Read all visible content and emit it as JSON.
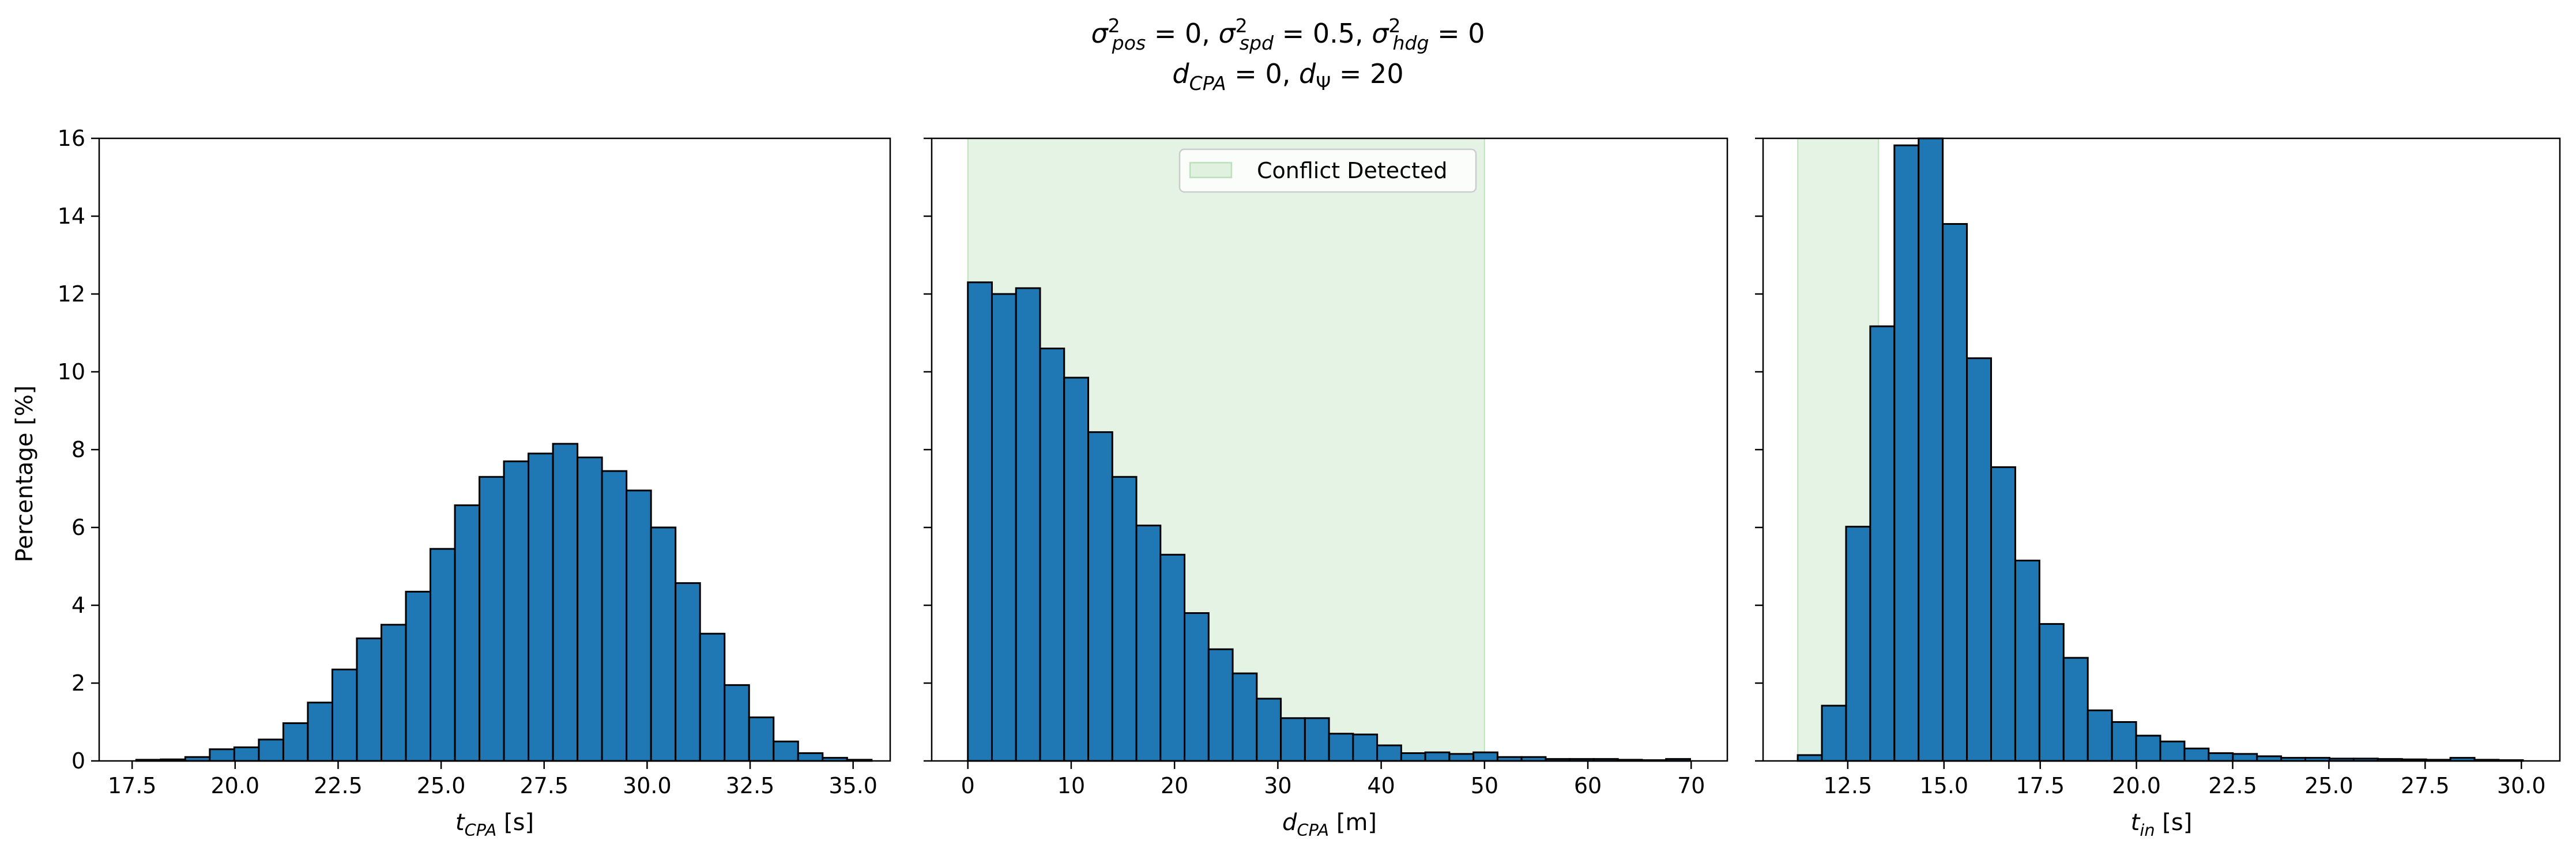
{
  "title": {
    "line1": {
      "s_pos": "pos",
      "s_pos_val": " = 0, ",
      "s_spd": "spd",
      "s_spd_val": " = 0.5, ",
      "s_hdg": "hdg",
      "s_hdg_val": " = 0"
    },
    "line2": {
      "d_cpa_sub": "CPA",
      "d_cpa_val": " = 0, ",
      "d_psi_sub": "Ψ",
      "d_psi_val": " = 20"
    }
  },
  "ylabel": "Percentage [%]",
  "legend": {
    "label": "Conflict Detected",
    "color": "#2ca02c"
  },
  "bar_color": "#1f77b4",
  "chart_data": [
    {
      "type": "bar",
      "xlabel_sub": "CPA",
      "xlabel_unit": " [s]",
      "xlim": [
        16.7,
        35.9
      ],
      "ylim": [
        0,
        16
      ],
      "xticks": [
        "17.5",
        "20.0",
        "22.5",
        "25.0",
        "27.5",
        "30.0",
        "32.5",
        "35.0"
      ],
      "xtick_values": [
        17.5,
        20.0,
        22.5,
        25.0,
        27.5,
        30.0,
        32.5,
        35.0
      ],
      "yticks": [
        "0",
        "2",
        "4",
        "6",
        "8",
        "10",
        "12",
        "14",
        "16"
      ],
      "ytick_values": [
        0,
        2,
        4,
        6,
        8,
        10,
        12,
        14,
        16
      ],
      "bin_start": 17.6,
      "bin_width": 0.595,
      "values": [
        0.03,
        0.04,
        0.1,
        0.3,
        0.35,
        0.55,
        0.97,
        1.5,
        2.35,
        3.15,
        3.5,
        4.35,
        5.45,
        6.57,
        7.3,
        7.7,
        7.9,
        8.15,
        7.8,
        7.45,
        6.95,
        6.0,
        4.57,
        3.27,
        1.95,
        1.12,
        0.5,
        0.2,
        0.08,
        0.03
      ],
      "shade": null
    },
    {
      "type": "bar",
      "xlabel_sub": "CPA",
      "xlabel_unit": " [m]",
      "xlim": [
        -3.5,
        73.5
      ],
      "ylim": [
        0,
        16
      ],
      "xticks": [
        "0",
        "10",
        "20",
        "30",
        "40",
        "50",
        "60",
        "70"
      ],
      "xtick_values": [
        0,
        10,
        20,
        30,
        40,
        50,
        60,
        70
      ],
      "yticks": [
        "0",
        "2",
        "4",
        "6",
        "8",
        "10",
        "12",
        "14",
        "16"
      ],
      "ytick_values": [
        0,
        2,
        4,
        6,
        8,
        10,
        12,
        14,
        16
      ],
      "bin_start": 0,
      "bin_width": 2.33,
      "values": [
        12.3,
        12.0,
        12.15,
        10.6,
        9.85,
        8.45,
        7.3,
        6.05,
        5.3,
        3.8,
        2.87,
        2.25,
        1.6,
        1.1,
        1.1,
        0.7,
        0.68,
        0.4,
        0.2,
        0.22,
        0.18,
        0.22,
        0.1,
        0.1,
        0.05,
        0.05,
        0.05,
        0.03,
        0.02,
        0.05
      ],
      "shade": [
        0,
        50
      ]
    },
    {
      "type": "bar",
      "xlabel_sub": "in",
      "xlabel_unit": " [s]",
      "xlim": [
        10.3,
        31.0
      ],
      "ylim": [
        0,
        16
      ],
      "xticks": [
        "12.5",
        "15.0",
        "17.5",
        "20.0",
        "22.5",
        "25.0",
        "27.5",
        "30.0"
      ],
      "xtick_values": [
        12.5,
        15.0,
        17.5,
        20.0,
        22.5,
        25.0,
        27.5,
        30.0
      ],
      "yticks": [
        "0",
        "2",
        "4",
        "6",
        "8",
        "10",
        "12",
        "14",
        "16"
      ],
      "ytick_values": [
        0,
        2,
        4,
        6,
        8,
        10,
        12,
        14,
        16
      ],
      "bin_start": 11.2,
      "bin_width": 0.628,
      "values": [
        0.15,
        1.42,
        6.02,
        11.17,
        15.82,
        16.0,
        13.8,
        10.35,
        7.55,
        5.15,
        3.52,
        2.65,
        1.3,
        1.0,
        0.65,
        0.5,
        0.32,
        0.2,
        0.18,
        0.12,
        0.08,
        0.08,
        0.06,
        0.06,
        0.05,
        0.04,
        0.03,
        0.08,
        0.03,
        0.02
      ],
      "shade": [
        11.2,
        13.3
      ]
    }
  ]
}
